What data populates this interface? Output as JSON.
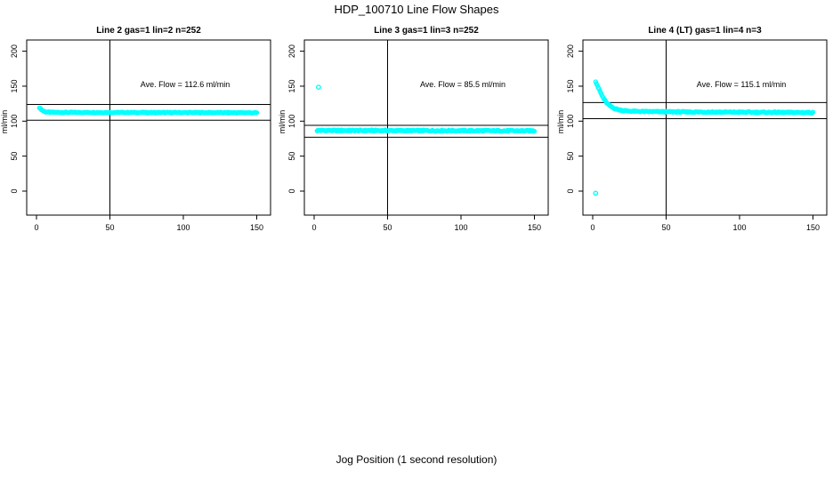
{
  "figure": {
    "title": "HDP_100710  Line Flow Shapes",
    "xlabel": "Jog Position (1 second resolution)",
    "background_color": "#ffffff",
    "point_color": "#00ffff",
    "line_color": "#000000"
  },
  "chart_data": [
    {
      "type": "scatter",
      "title": "Line 2 gas=1 lin=2 n=252",
      "ylabel": "ml/min",
      "annotation": "Ave. Flow =  112.6  ml/min",
      "ave_flow_ml_min": 112.6,
      "n": 252,
      "xlim": [
        0,
        150
      ],
      "ylim": [
        0,
        215
      ],
      "xticks": [
        "0",
        "50",
        "100",
        "150"
      ],
      "yticks": [
        "0",
        "50",
        "100",
        "150",
        "200"
      ],
      "xtick_values": [
        0,
        50,
        100,
        150
      ],
      "ytick_values": [
        0,
        50,
        100,
        150,
        200
      ],
      "grid": false,
      "vline_x": 50,
      "hlines": [
        123.9,
        101.3
      ],
      "series": [
        {
          "name": "flow-band",
          "anchors": [
            [
              2,
              119.5
            ],
            [
              3,
              117.2
            ],
            [
              4,
              115.5
            ],
            [
              5,
              114.3
            ],
            [
              6,
              113.4
            ],
            [
              8,
              112.8
            ],
            [
              10,
              112.6
            ],
            [
              20,
              112.5
            ],
            [
              40,
              112.4
            ],
            [
              60,
              112.4
            ],
            [
              80,
              112.3
            ],
            [
              100,
              112.3
            ],
            [
              120,
              112.2
            ],
            [
              150,
              112.0
            ]
          ],
          "n_points": 250,
          "jitter": 0.7
        }
      ],
      "outliers": []
    },
    {
      "type": "scatter",
      "title": "Line 3 gas=1 lin=3 n=252",
      "ylabel": "ml/min",
      "annotation": "Ave. Flow =  85.5  ml/min",
      "ave_flow_ml_min": 85.5,
      "n": 252,
      "xlim": [
        0,
        150
      ],
      "ylim": [
        0,
        215
      ],
      "xticks": [
        "0",
        "50",
        "100",
        "150"
      ],
      "yticks": [
        "0",
        "50",
        "100",
        "150",
        "200"
      ],
      "xtick_values": [
        0,
        50,
        100,
        150
      ],
      "ytick_values": [
        0,
        50,
        100,
        150,
        200
      ],
      "grid": false,
      "vline_x": 50,
      "hlines": [
        94.1,
        77.0
      ],
      "series": [
        {
          "name": "flow-band",
          "anchors": [
            [
              2,
              86.7
            ],
            [
              30,
              86.6
            ],
            [
              60,
              86.5
            ],
            [
              100,
              86.4
            ],
            [
              150,
              86.2
            ]
          ],
          "n_points": 250,
          "jitter": 0.9
        }
      ],
      "outliers": [
        [
          3,
          148.5
        ]
      ]
    },
    {
      "type": "scatter",
      "title": "Line 4 (LT) gas=1 lin=4 n=3",
      "ylabel": "ml/min",
      "annotation": "Ave. Flow =  115.1  ml/min",
      "ave_flow_ml_min": 115.1,
      "n": 3,
      "xlim": [
        0,
        150
      ],
      "ylim": [
        0,
        215
      ],
      "xticks": [
        "0",
        "50",
        "100",
        "150"
      ],
      "yticks": [
        "0",
        "50",
        "100",
        "150",
        "200"
      ],
      "xtick_values": [
        0,
        50,
        100,
        150
      ],
      "ytick_values": [
        0,
        50,
        100,
        150,
        200
      ],
      "grid": false,
      "vline_x": 50,
      "hlines": [
        126.6,
        103.6
      ],
      "series": [
        {
          "name": "flow-decay",
          "anchors": [
            [
              2,
              157
            ],
            [
              3,
              152
            ],
            [
              4,
              147
            ],
            [
              5,
              142.5
            ],
            [
              6,
              138
            ],
            [
              7,
              134
            ],
            [
              8,
              130.5
            ],
            [
              9,
              127.5
            ],
            [
              10,
              125
            ],
            [
              12,
              121.5
            ],
            [
              14,
              119
            ],
            [
              16,
              117.3
            ],
            [
              18,
              116.2
            ],
            [
              20,
              115.4
            ],
            [
              25,
              114.4
            ],
            [
              30,
              114.0
            ],
            [
              40,
              113.6
            ],
            [
              60,
              113.2
            ],
            [
              80,
              113.0
            ],
            [
              100,
              112.8
            ],
            [
              120,
              112.6
            ],
            [
              150,
              112.3
            ]
          ],
          "n_points": 260,
          "jitter": 0.8
        }
      ],
      "outliers": [
        [
          2,
          -3
        ]
      ]
    }
  ]
}
